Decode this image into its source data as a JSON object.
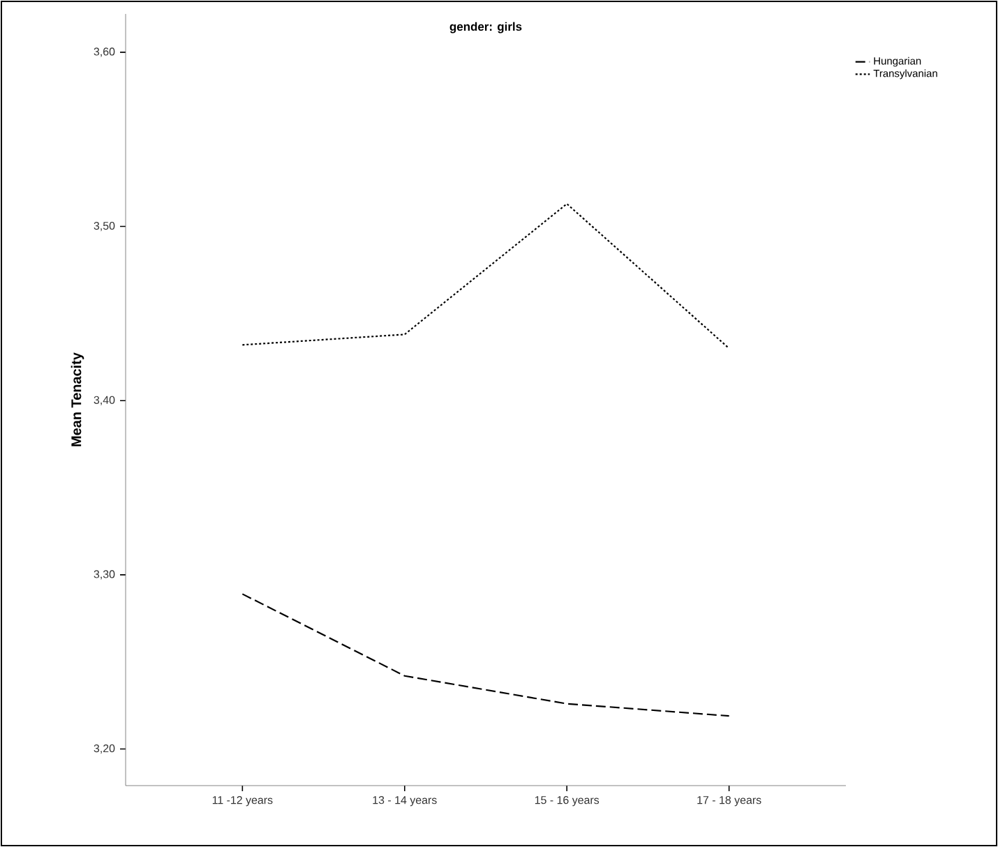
{
  "chart_data": {
    "type": "line",
    "title": "gender: girls",
    "ylabel": "Mean Tenacity",
    "categories": [
      "11 -12 years",
      "13 - 14 years",
      "15 - 16 years",
      "17 - 18 years"
    ],
    "series": [
      {
        "name": "Hungarian",
        "color": "#000000",
        "line_style": "dashed",
        "values": [
          3.289,
          3.242,
          3.226,
          3.219
        ]
      },
      {
        "name": "Transylvanian",
        "color": "#000000",
        "line_style": "dotted",
        "values": [
          3.432,
          3.438,
          3.513,
          3.43
        ]
      }
    ],
    "ylim": [
      3.179,
      3.622
    ],
    "yticks": [
      {
        "value": 3.2,
        "label": "3,20"
      },
      {
        "value": 3.3,
        "label": "3,30"
      },
      {
        "value": 3.4,
        "label": "3,40"
      },
      {
        "value": 3.5,
        "label": "3,50"
      },
      {
        "value": 3.6,
        "label": "3,60"
      }
    ],
    "grid": false,
    "legend": "top right",
    "marker": "none"
  }
}
